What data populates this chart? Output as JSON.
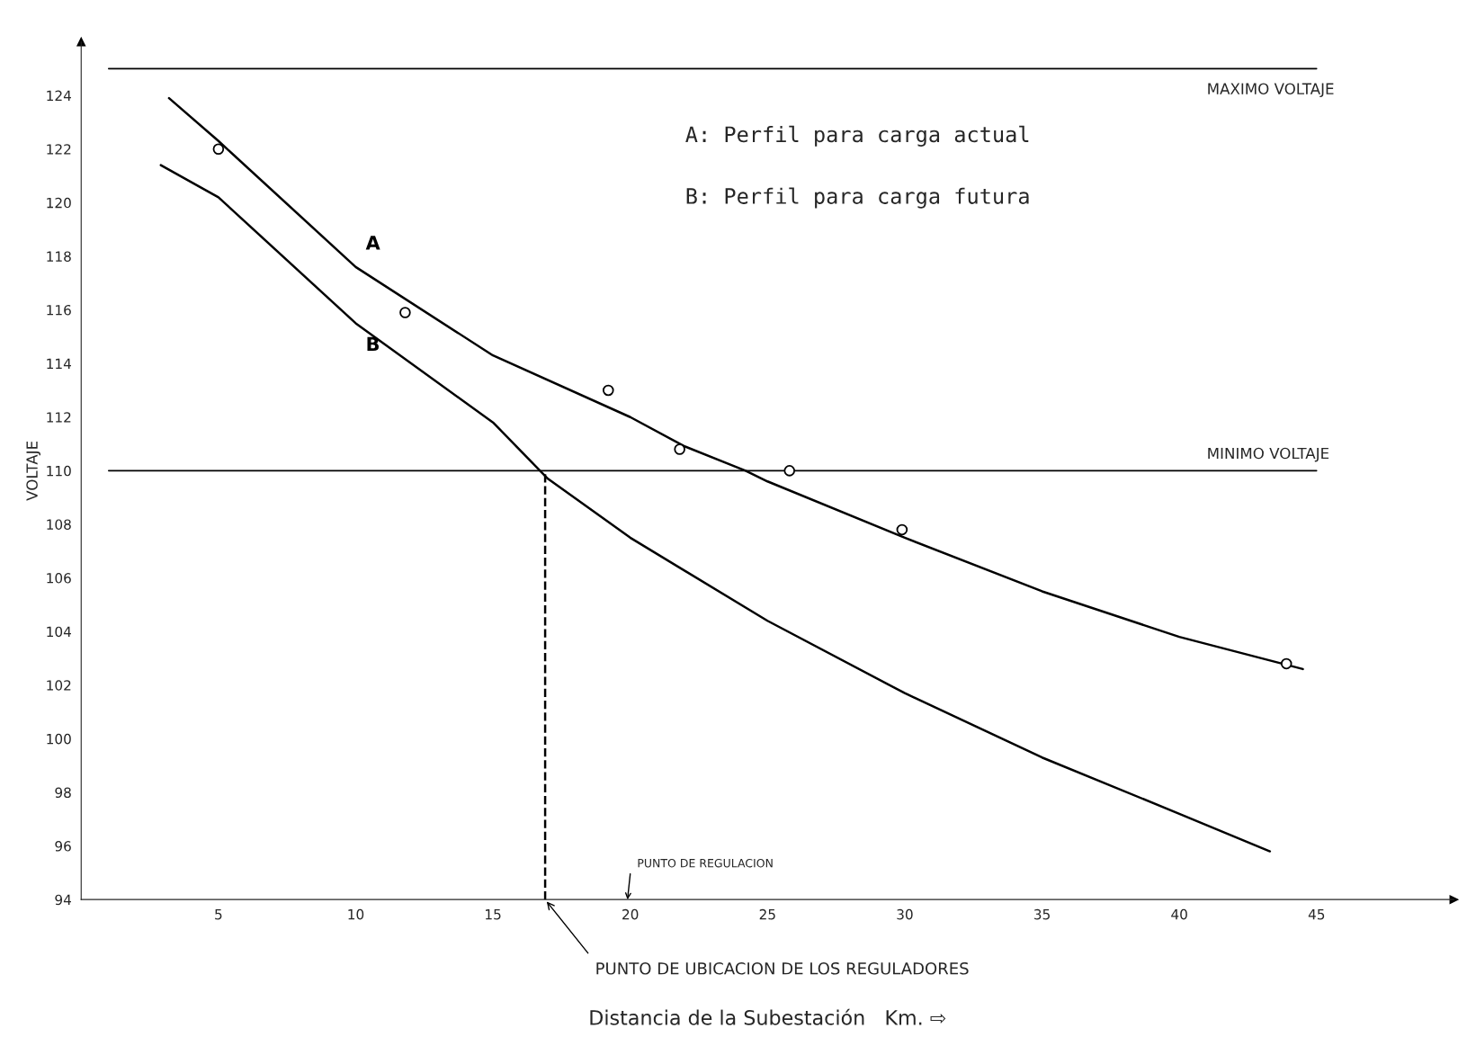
{
  "chart_data": {
    "type": "line",
    "xlabel": "Distancia de la Subestación   Km. ⇨",
    "ylabel": "VOLTAJE",
    "xlim": [
      0,
      50
    ],
    "ylim": [
      94,
      126
    ],
    "xticks": [
      5,
      10,
      15,
      20,
      25,
      30,
      35,
      40,
      45
    ],
    "yticks": [
      94,
      96,
      98,
      100,
      102,
      104,
      106,
      108,
      110,
      112,
      114,
      116,
      118,
      120,
      122,
      124
    ],
    "grid": false,
    "legend": false,
    "series": [
      {
        "name": "A",
        "color": "#000000",
        "line_style": "solid",
        "x": [
          3.2,
          5,
          10,
          15,
          20,
          22,
          24.2,
          25,
          30,
          35,
          40,
          44.5
        ],
        "values": [
          123.9,
          122.3,
          117.6,
          114.3,
          112.0,
          110.9,
          110.0,
          109.6,
          107.5,
          105.5,
          103.8,
          102.6
        ]
      },
      {
        "name": "B",
        "color": "#000000",
        "line_style": "solid",
        "x": [
          2.9,
          5,
          10,
          15,
          17,
          20,
          25,
          30,
          35,
          40,
          43.3
        ],
        "values": [
          121.4,
          120.2,
          115.5,
          111.8,
          109.7,
          107.5,
          104.4,
          101.7,
          99.3,
          97.2,
          95.8
        ]
      },
      {
        "type": "scatter",
        "color": "#000000",
        "marker": "circle",
        "x": [
          5,
          11.8,
          19.2,
          21.8,
          25.8,
          29.9,
          43.9
        ],
        "values": [
          122,
          115.9,
          113,
          110.8,
          110,
          107.8,
          102.8
        ]
      },
      {
        "color": "#000000",
        "line_style": "dashed",
        "x": [
          16.9,
          16.9
        ],
        "values": [
          94,
          110
        ]
      }
    ],
    "ref_lines": [
      {
        "axis": "y",
        "value": 125,
        "label": "MAXIMO VOLTAJE",
        "color": "#000000",
        "line_style": "solid"
      },
      {
        "axis": "y",
        "value": 110,
        "label": "MINIMO VOLTAJE",
        "color": "#000000",
        "line_style": "solid"
      }
    ],
    "annotations": [
      "A: Perfil para carga actual",
      "B: Perfil para carga futura",
      "PUNTO DE REGULACION",
      {
        "text": "PUNTO DE UBICACION DE LOS REGULADORES",
        "x": 16.9,
        "y": 94
      }
    ]
  }
}
